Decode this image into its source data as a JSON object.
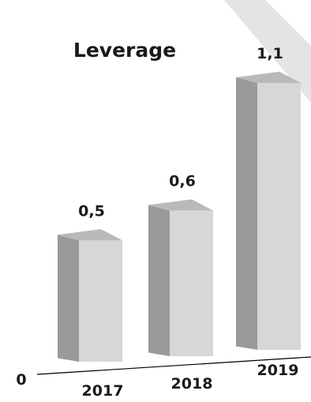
{
  "chart_data": {
    "type": "bar",
    "title": "Leverage",
    "categories": [
      "2017",
      "2018",
      "2019"
    ],
    "values": [
      0.5,
      0.6,
      1.1
    ],
    "value_labels": [
      "0,5",
      "0,6",
      "1,1"
    ],
    "baseline_label": "0",
    "xlabel": "",
    "ylabel": "",
    "ylim": [
      0,
      1.1
    ],
    "grid": false,
    "style": "3d-columns",
    "colors": {
      "front": "#d7d7d7",
      "side": "#9a9a9a",
      "top": "#b9b9b9",
      "accent_band": "#e4e4e4",
      "axis": "#000000"
    }
  }
}
